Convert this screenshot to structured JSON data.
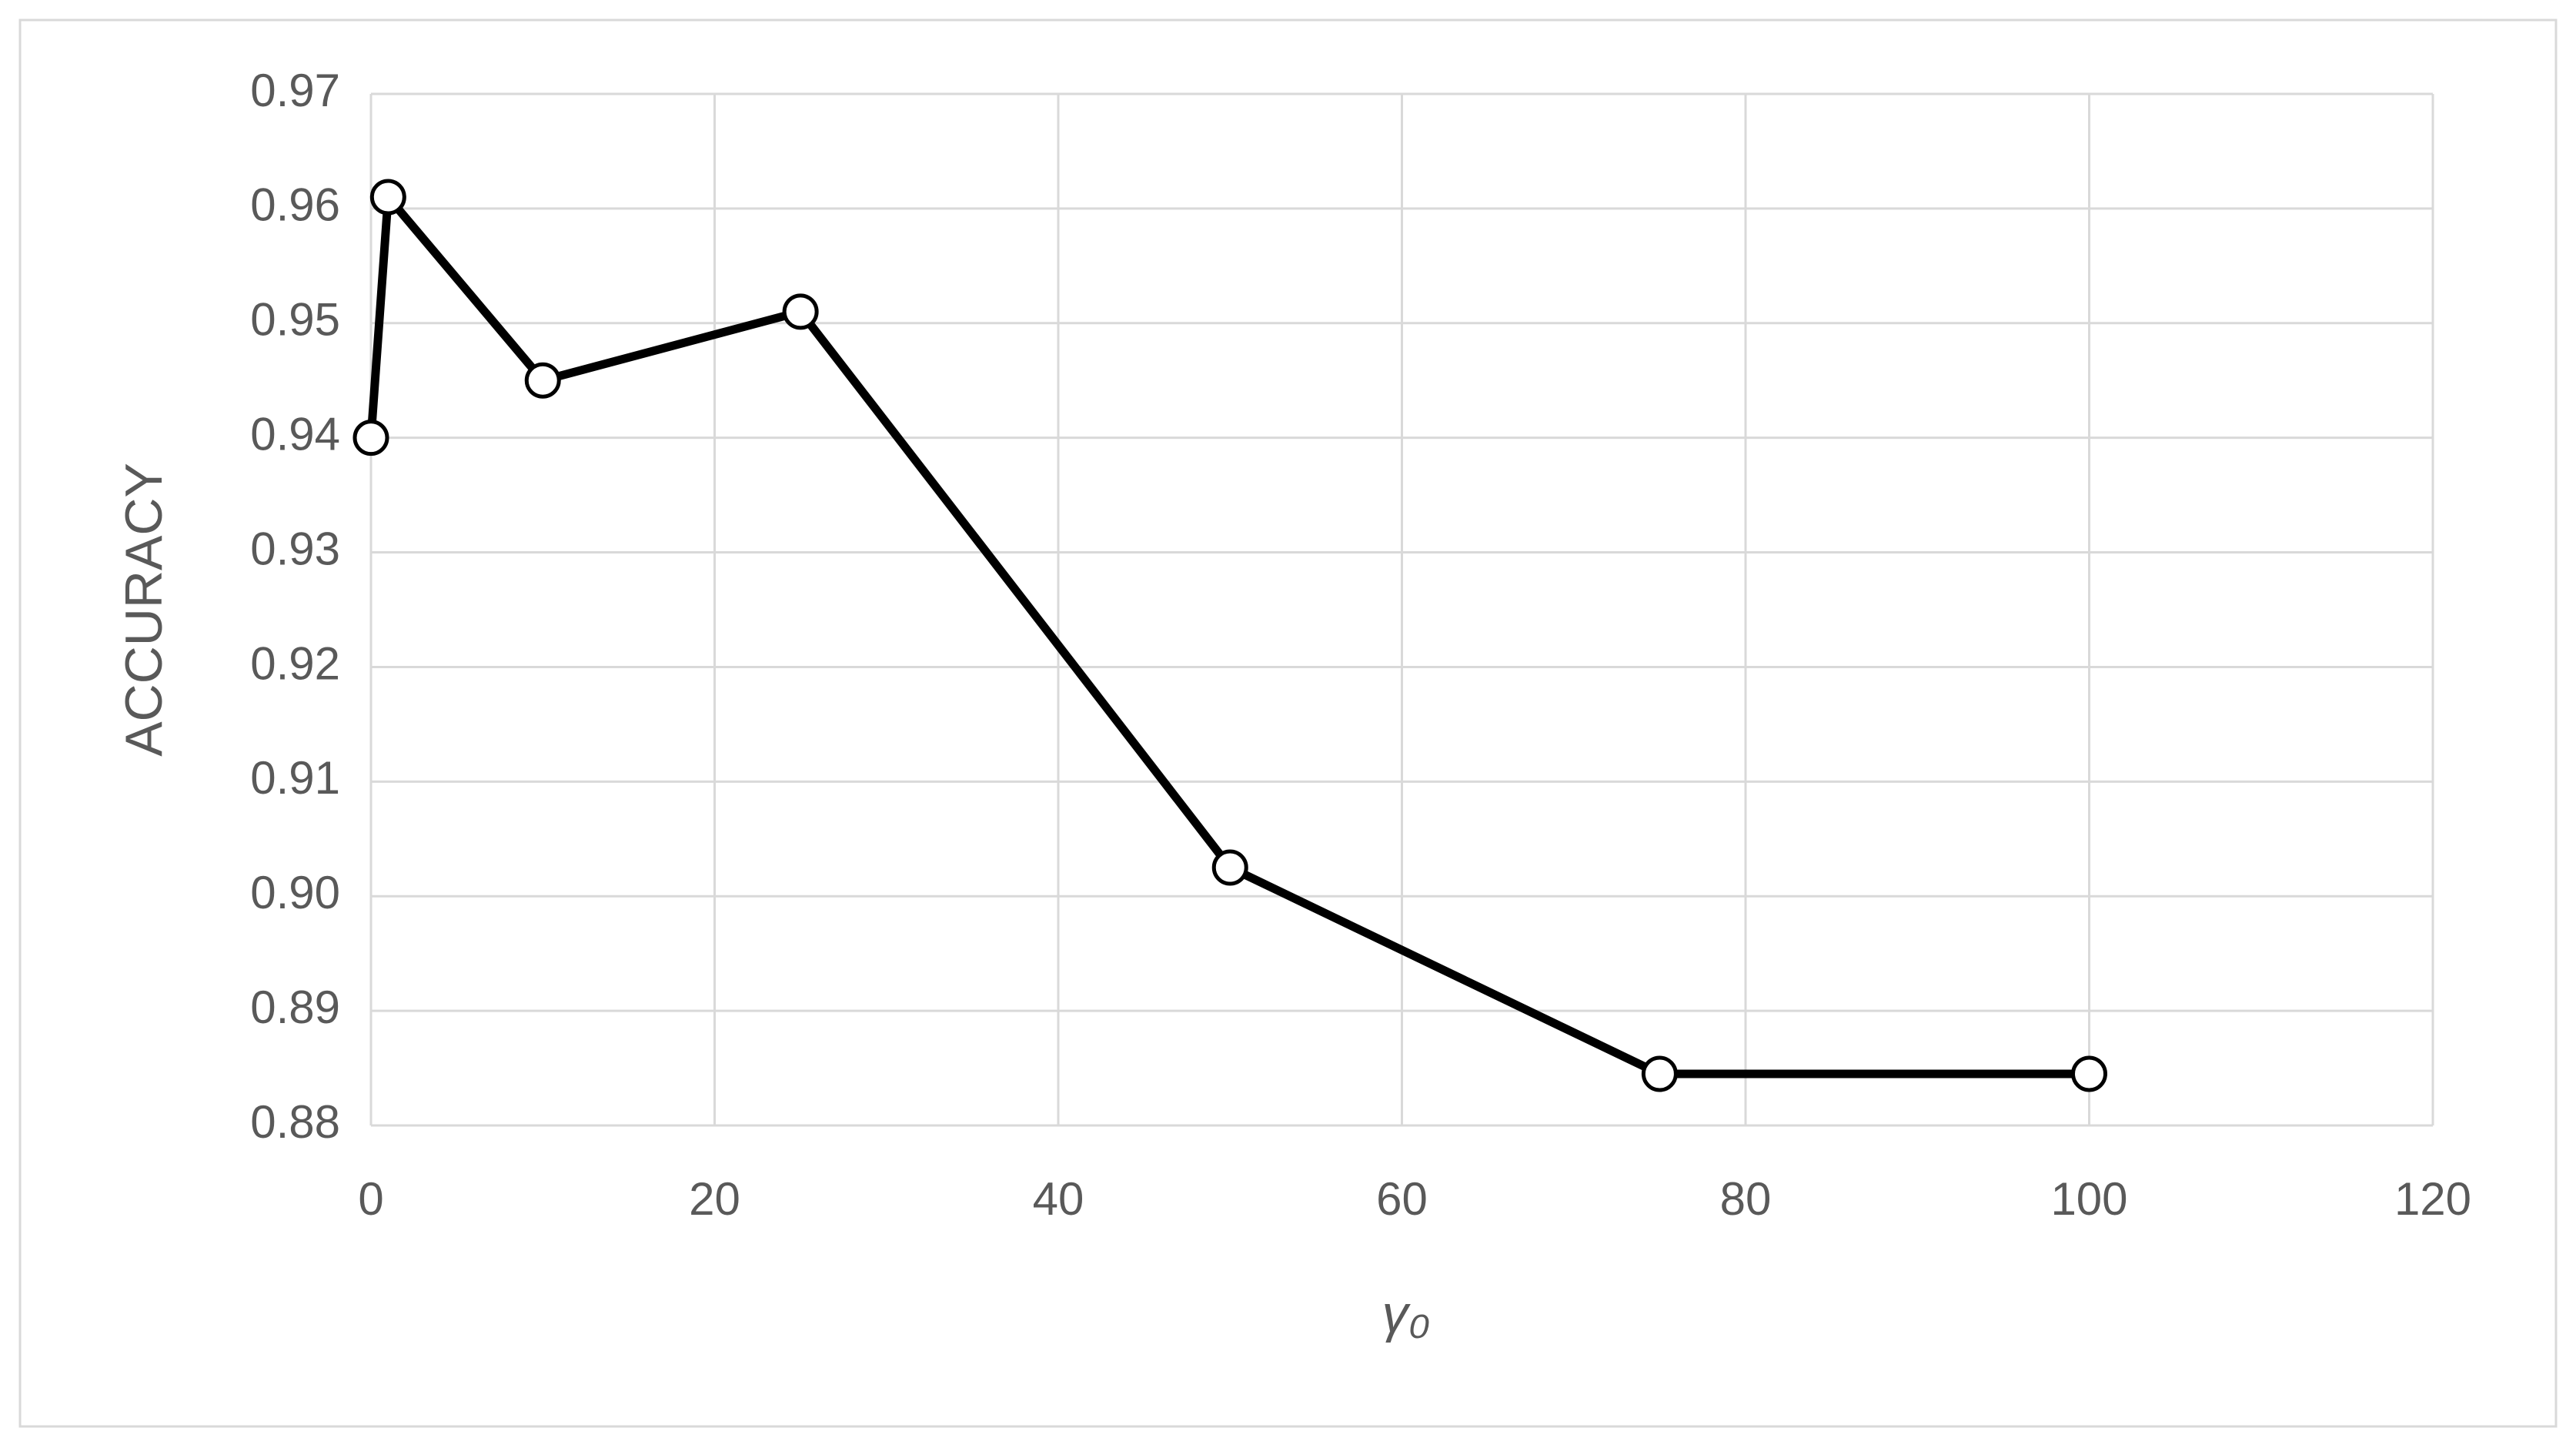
{
  "chart_data": {
    "type": "line",
    "x_label": "γ₀",
    "y_label": "ACCURACY",
    "x": [
      0,
      1,
      10,
      25,
      50,
      75,
      100
    ],
    "series": [
      {
        "name": "ACCURACY",
        "color": "#000000",
        "values": [
          0.94,
          0.961,
          0.945,
          0.951,
          0.9025,
          0.8845,
          0.8845
        ]
      }
    ],
    "xlim": [
      0,
      120
    ],
    "xticks": [
      0,
      20,
      40,
      60,
      80,
      100,
      120
    ],
    "ylim": [
      0.88,
      0.97
    ],
    "yticks": [
      0.88,
      0.89,
      {
        "value": 0.9,
        "label": "0.90"
      },
      0.91,
      0.92,
      0.93,
      0.94,
      0.95,
      0.96,
      0.97
    ],
    "grid": true
  }
}
